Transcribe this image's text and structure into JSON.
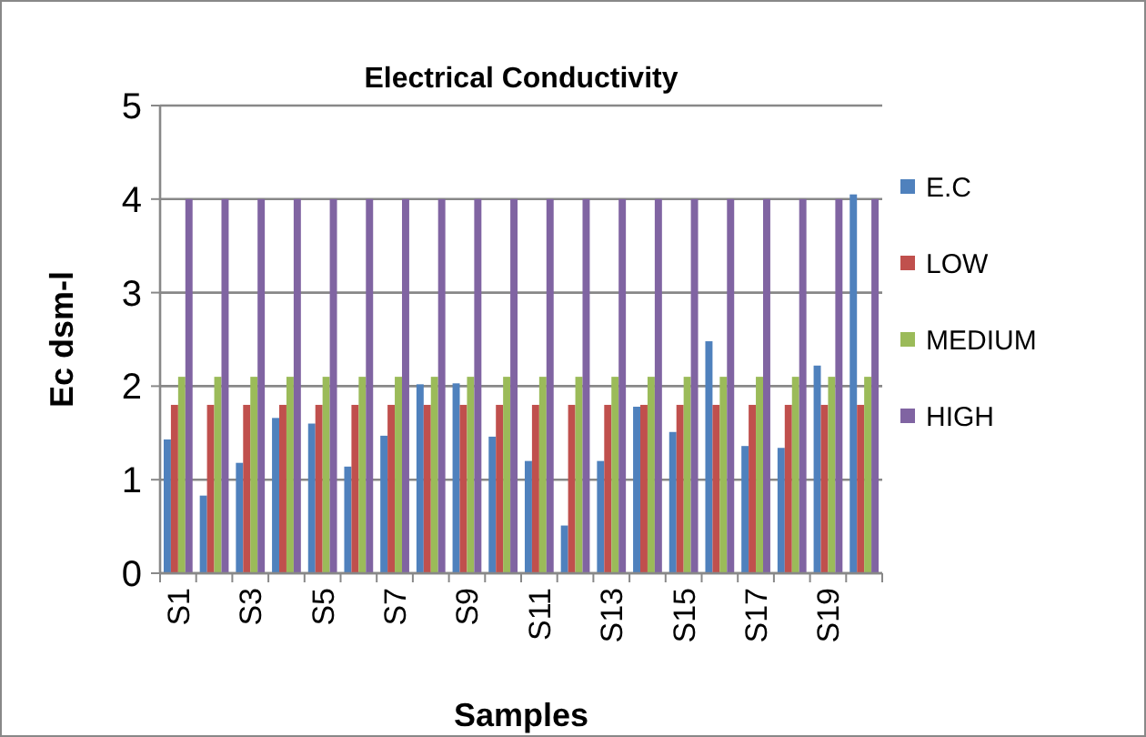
{
  "chart_data": {
    "type": "bar",
    "title": "Electrical Conductivity",
    "xlabel": "Samples",
    "ylabel": "Ec dsm-l",
    "categories": [
      "S1",
      null,
      "S3",
      null,
      "S5",
      null,
      "S7",
      null,
      "S9",
      null,
      "S11",
      null,
      "S13",
      null,
      "S15",
      null,
      "S17",
      null,
      "S19",
      null
    ],
    "series": [
      {
        "name": "E.C",
        "color": "#4f81bd",
        "values": [
          1.43,
          0.83,
          1.18,
          1.66,
          1.6,
          1.14,
          1.47,
          2.02,
          2.03,
          1.46,
          1.2,
          0.51,
          1.2,
          1.78,
          1.51,
          2.48,
          1.36,
          1.34,
          2.22,
          4.05
        ]
      },
      {
        "name": "LOW",
        "color": "#c0504d",
        "values": [
          1.8,
          1.8,
          1.8,
          1.8,
          1.8,
          1.8,
          1.8,
          1.8,
          1.8,
          1.8,
          1.8,
          1.8,
          1.8,
          1.8,
          1.8,
          1.8,
          1.8,
          1.8,
          1.8,
          1.8
        ]
      },
      {
        "name": "MEDIUM",
        "color": "#9bbb59",
        "values": [
          2.1,
          2.1,
          2.1,
          2.1,
          2.1,
          2.1,
          2.1,
          2.1,
          2.1,
          2.1,
          2.1,
          2.1,
          2.1,
          2.1,
          2.1,
          2.1,
          2.1,
          2.1,
          2.1,
          2.1
        ]
      },
      {
        "name": "HIGH",
        "color": "#8064a2",
        "values": [
          4,
          4,
          4,
          4,
          4,
          4,
          4,
          4,
          4,
          4,
          4,
          4,
          4,
          4,
          4,
          4,
          4,
          4,
          4,
          4
        ]
      }
    ],
    "ylim": [
      0,
      5
    ],
    "yticks": [
      0,
      1,
      2,
      3,
      4,
      5
    ],
    "grid": "y",
    "legend": "right"
  }
}
